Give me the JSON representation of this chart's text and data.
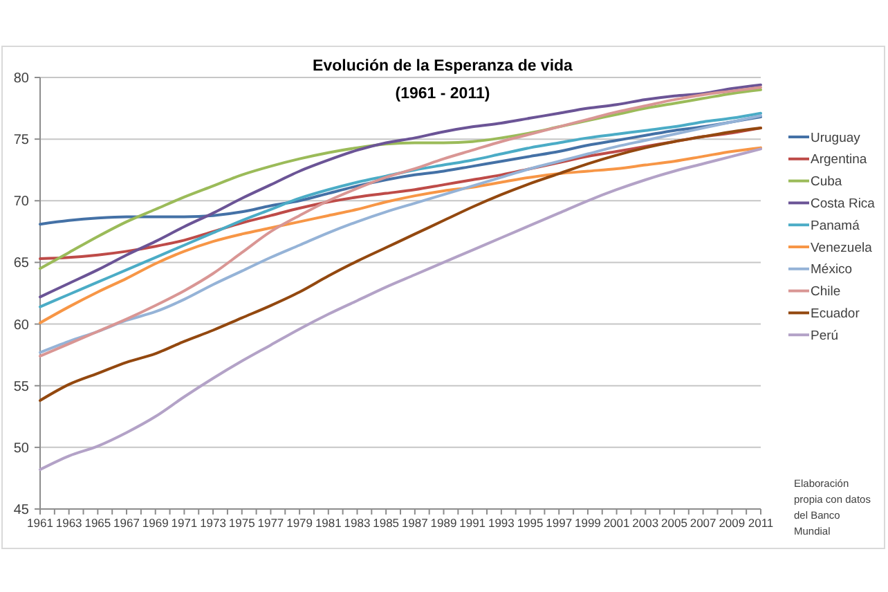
{
  "chart_data": {
    "type": "line",
    "title": "Evolución de la Esperanza de vida",
    "subtitle": "(1961 - 2011)",
    "x": [
      1961,
      1963,
      1965,
      1967,
      1969,
      1971,
      1973,
      1975,
      1977,
      1979,
      1981,
      1983,
      1985,
      1987,
      1989,
      1991,
      1993,
      1995,
      1997,
      1999,
      2001,
      2003,
      2005,
      2007,
      2009,
      2011
    ],
    "series": [
      {
        "name": "Uruguay",
        "color": "#4471a6",
        "values": [
          68.1,
          68.4,
          68.6,
          68.7,
          68.7,
          68.7,
          68.8,
          69.1,
          69.6,
          70.0,
          70.6,
          71.2,
          71.7,
          72.1,
          72.4,
          72.8,
          73.2,
          73.6,
          74.0,
          74.5,
          74.9,
          75.3,
          75.7,
          76.0,
          76.4,
          76.8
        ]
      },
      {
        "name": "Argentina",
        "color": "#be4b48",
        "values": [
          65.3,
          65.4,
          65.6,
          65.9,
          66.3,
          66.8,
          67.5,
          68.2,
          68.8,
          69.4,
          69.9,
          70.3,
          70.6,
          70.9,
          71.3,
          71.7,
          72.1,
          72.6,
          73.1,
          73.6,
          74.0,
          74.4,
          74.8,
          75.2,
          75.5,
          75.9
        ]
      },
      {
        "name": "Cuba",
        "color": "#9bbb59",
        "values": [
          64.5,
          65.8,
          67.1,
          68.3,
          69.3,
          70.3,
          71.2,
          72.1,
          72.8,
          73.4,
          73.9,
          74.3,
          74.6,
          74.7,
          74.7,
          74.8,
          75.1,
          75.5,
          76.0,
          76.5,
          77.0,
          77.5,
          77.9,
          78.3,
          78.7,
          79.0
        ]
      },
      {
        "name": "Costa Rica",
        "color": "#6b5496",
        "values": [
          62.2,
          63.3,
          64.4,
          65.6,
          66.7,
          67.9,
          69.0,
          70.2,
          71.3,
          72.4,
          73.3,
          74.1,
          74.7,
          75.1,
          75.6,
          76.0,
          76.3,
          76.7,
          77.1,
          77.5,
          77.8,
          78.2,
          78.5,
          78.7,
          79.1,
          79.4
        ]
      },
      {
        "name": "Panamá",
        "color": "#4bacc6",
        "values": [
          61.4,
          62.4,
          63.4,
          64.4,
          65.4,
          66.4,
          67.4,
          68.4,
          69.3,
          70.2,
          70.9,
          71.5,
          72.0,
          72.5,
          72.9,
          73.3,
          73.8,
          74.3,
          74.7,
          75.1,
          75.4,
          75.7,
          76.0,
          76.4,
          76.7,
          77.1
        ]
      },
      {
        "name": "Venezuela",
        "color": "#f79646",
        "values": [
          60.1,
          61.4,
          62.6,
          63.7,
          64.9,
          65.9,
          66.7,
          67.3,
          67.8,
          68.3,
          68.8,
          69.3,
          69.9,
          70.4,
          70.8,
          71.1,
          71.5,
          71.9,
          72.2,
          72.4,
          72.6,
          72.9,
          73.2,
          73.6,
          74.0,
          74.3
        ]
      },
      {
        "name": "México",
        "color": "#95b3d7",
        "values": [
          57.7,
          58.6,
          59.4,
          60.3,
          61.0,
          62.0,
          63.2,
          64.3,
          65.4,
          66.4,
          67.4,
          68.3,
          69.1,
          69.8,
          70.5,
          71.2,
          71.9,
          72.6,
          73.2,
          73.8,
          74.4,
          74.9,
          75.4,
          75.9,
          76.4,
          76.9
        ]
      },
      {
        "name": "Chile",
        "color": "#d99694",
        "values": [
          57.4,
          58.4,
          59.4,
          60.4,
          61.5,
          62.7,
          64.1,
          65.8,
          67.5,
          68.8,
          70.0,
          71.0,
          71.9,
          72.6,
          73.4,
          74.1,
          74.8,
          75.4,
          76.0,
          76.6,
          77.2,
          77.7,
          78.2,
          78.6,
          78.9,
          79.2
        ]
      },
      {
        "name": "Ecuador",
        "color": "#93480f",
        "values": [
          53.8,
          55.1,
          56.0,
          56.9,
          57.6,
          58.6,
          59.5,
          60.5,
          61.5,
          62.6,
          63.9,
          65.1,
          66.2,
          67.3,
          68.4,
          69.5,
          70.5,
          71.4,
          72.2,
          73.0,
          73.7,
          74.3,
          74.8,
          75.2,
          75.6,
          75.9
        ]
      },
      {
        "name": "Perú",
        "color": "#b3a2c7",
        "values": [
          48.2,
          49.3,
          50.1,
          51.2,
          52.5,
          54.1,
          55.6,
          57.0,
          58.3,
          59.6,
          60.8,
          61.9,
          63.0,
          64.0,
          65.0,
          66.0,
          67.0,
          68.0,
          69.0,
          70.0,
          70.9,
          71.7,
          72.4,
          73.0,
          73.6,
          74.2
        ]
      }
    ],
    "xlim": [
      1961,
      2011
    ],
    "xticks": [
      1961,
      {
        "value": 1962,
        "label": null
      },
      1963,
      {
        "value": 1964,
        "label": null
      },
      1965,
      {
        "value": 1966,
        "label": null
      },
      1967,
      {
        "value": 1968,
        "label": null
      },
      1969,
      {
        "value": 1970,
        "label": null
      },
      1971,
      {
        "value": 1972,
        "label": null
      },
      1973,
      {
        "value": 1974,
        "label": null
      },
      1975,
      {
        "value": 1976,
        "label": null
      },
      1977,
      {
        "value": 1978,
        "label": null
      },
      1979,
      {
        "value": 1980,
        "label": null
      },
      1981,
      {
        "value": 1982,
        "label": null
      },
      1983,
      {
        "value": 1984,
        "label": null
      },
      1985,
      {
        "value": 1986,
        "label": null
      },
      1987,
      {
        "value": 1988,
        "label": null
      },
      1989,
      {
        "value": 1990,
        "label": null
      },
      1991,
      {
        "value": 1992,
        "label": null
      },
      1993,
      {
        "value": 1994,
        "label": null
      },
      1995,
      {
        "value": 1996,
        "label": null
      },
      1997,
      {
        "value": 1998,
        "label": null
      },
      1999,
      {
        "value": 2000,
        "label": null
      },
      2001,
      {
        "value": 2002,
        "label": null
      },
      2003,
      {
        "value": 2004,
        "label": null
      },
      2005,
      {
        "value": 2006,
        "label": null
      },
      2007,
      {
        "value": 2008,
        "label": null
      },
      2009,
      {
        "value": 2010,
        "label": null
      },
      2011
    ],
    "ylim": [
      45,
      80
    ],
    "yticks": [
      45,
      50,
      55,
      60,
      65,
      70,
      75,
      80
    ],
    "grid": "y",
    "legend": "right",
    "annotations": [
      "Elaboración propia con datos del Banco Mundial"
    ]
  }
}
